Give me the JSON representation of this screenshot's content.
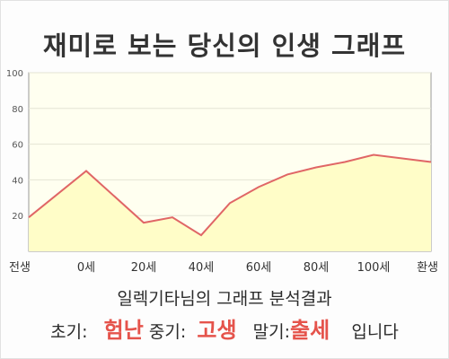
{
  "title": "재미로 보는 당신의 인생 그래프",
  "result_heading": "일렉기타님의 그래프 분석결과",
  "summary": {
    "early_label": "초기:",
    "early_value": "험난",
    "mid_label": "중기:",
    "mid_value": "고생",
    "late_label": "말기:",
    "late_value": "출세",
    "ending": "입니다"
  },
  "colors": {
    "line": "#e06666",
    "fill": "#fffdc8",
    "plot_bg": "#fffff0",
    "highlight": "#e5534b"
  },
  "chart_data": {
    "type": "area",
    "title": "재미로 보는 당신의 인생 그래프",
    "xlabel": "",
    "ylabel": "",
    "x_tick_labels": [
      "전생",
      "0세",
      "20세",
      "40세",
      "60세",
      "80세",
      "100세",
      "환생"
    ],
    "x_tick_positions": [
      -20,
      0,
      20,
      40,
      60,
      80,
      100,
      120
    ],
    "xlim": [
      -20,
      120
    ],
    "ylim": [
      0,
      100
    ],
    "y_ticks": [
      20,
      40,
      60,
      80,
      100
    ],
    "grid": true,
    "series": [
      {
        "x": [
          -20,
          0,
          20,
          30,
          40,
          50,
          60,
          70,
          80,
          90,
          100,
          120
        ],
        "y": [
          19,
          45,
          16,
          19,
          9,
          27,
          36,
          43,
          47,
          50,
          54,
          50
        ]
      }
    ]
  }
}
